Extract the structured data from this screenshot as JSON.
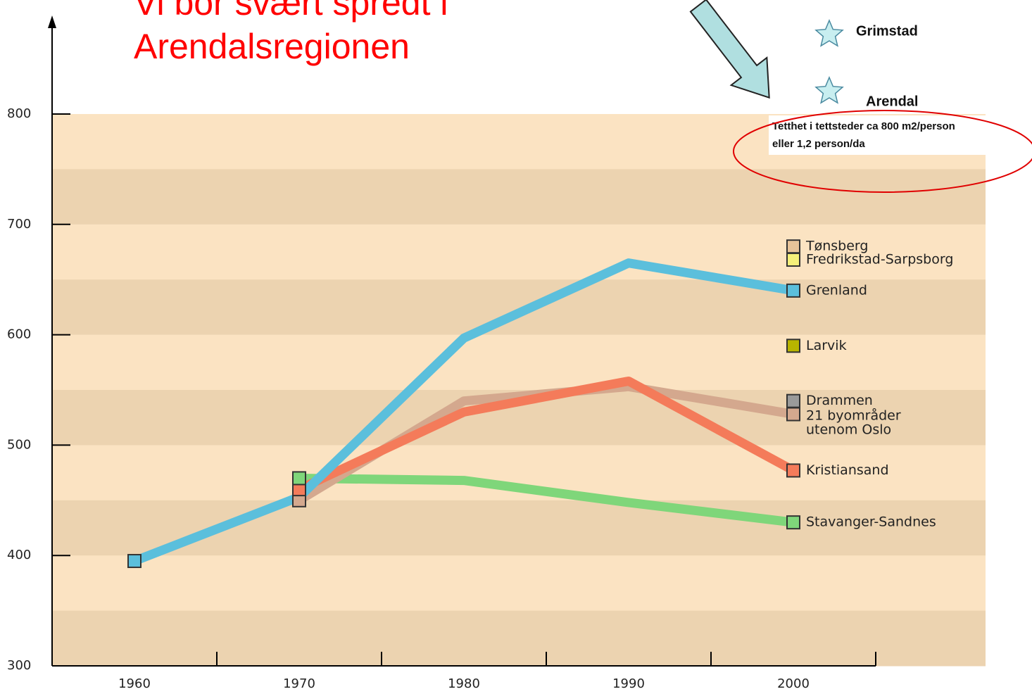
{
  "chart_data": {
    "type": "line",
    "title": "Vi bor svært spredt i Arendalsregionen",
    "x": [
      1960,
      1970,
      1980,
      1990,
      2000
    ],
    "series": [
      {
        "name": "Tønsberg",
        "color": "#e8c49a",
        "values": [
          null,
          null,
          null,
          null,
          680
        ]
      },
      {
        "name": "Fredrikstad-Sarpsborg",
        "color": "#f5f07a",
        "values": [
          null,
          null,
          null,
          null,
          668
        ]
      },
      {
        "name": "Grenland",
        "color": "#5bbfdc",
        "values": [
          395,
          453,
          597,
          665,
          640
        ]
      },
      {
        "name": "Larvik",
        "color": "#b8b400",
        "values": [
          null,
          null,
          null,
          null,
          590
        ]
      },
      {
        "name": "Drammen",
        "color": "#9a9a9a",
        "values": [
          null,
          null,
          null,
          null,
          540
        ]
      },
      {
        "name": "21 byområder utenom Oslo",
        "color": "#d4a88e",
        "values": [
          null,
          450,
          540,
          553,
          528
        ]
      },
      {
        "name": "Kristiansand",
        "color": "#f47b5a",
        "values": [
          null,
          460,
          530,
          558,
          477
        ]
      },
      {
        "name": "Stavanger-Sandnes",
        "color": "#7fd67a",
        "values": [
          null,
          470,
          468,
          448,
          430
        ]
      }
    ],
    "ylim": [
      300,
      800
    ],
    "yticks": [
      300,
      400,
      500,
      600,
      700,
      800
    ],
    "xlim": [
      1955,
      2005
    ],
    "xticks": [
      1960,
      1970,
      1980,
      1990,
      2000
    ],
    "xminor_ticks": [
      1965,
      1975,
      1985,
      1995,
      2005
    ],
    "annotations": [
      "Grimstad",
      "Arendal",
      "Tetthet i tettsteder ca 800 m2/person",
      "eller 1,2 person/da"
    ]
  }
}
